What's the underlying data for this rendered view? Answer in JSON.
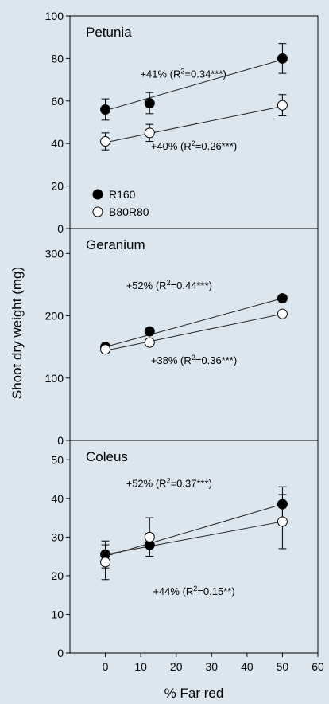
{
  "figure": {
    "ylabel": "Shoot dry weight (mg)",
    "xlabel": "% Far red",
    "xticks": [
      0,
      10,
      20,
      30,
      40,
      50,
      60
    ],
    "xlim": [
      -10,
      60
    ]
  },
  "legend": {
    "items": [
      {
        "label": "R160",
        "marker": "filled"
      },
      {
        "label": "B80R80",
        "marker": "open"
      }
    ]
  },
  "colors": {
    "background": "#dce6ef",
    "filled_marker": "#000000",
    "open_marker_fill": "#ffffff"
  },
  "chart_data": [
    {
      "type": "scatter",
      "title": "Petunia",
      "ylim": [
        0,
        100
      ],
      "yticks": [
        0,
        20,
        40,
        60,
        80,
        100
      ],
      "series": [
        {
          "name": "R160",
          "marker": "filled",
          "x": [
            0,
            12.5,
            50
          ],
          "y": [
            56,
            59,
            80
          ],
          "err": [
            5,
            5,
            7
          ],
          "fit": [
            55.5,
            79.5
          ]
        },
        {
          "name": "B80R80",
          "marker": "open",
          "x": [
            0,
            12.5,
            50
          ],
          "y": [
            41,
            45,
            58
          ],
          "err": [
            4,
            4,
            5
          ],
          "fit": [
            40.5,
            57.5
          ]
        }
      ],
      "annotations": [
        {
          "prefix": "+41% (R",
          "value": "=0.34***)",
          "anchor_x": 22,
          "anchor_y": 71
        },
        {
          "prefix": "+40% (R",
          "value": "=0.26***)",
          "anchor_x": 25,
          "anchor_y": 37
        }
      ]
    },
    {
      "type": "scatter",
      "title": "Geranium",
      "ylim": [
        0,
        340
      ],
      "yticks": [
        0,
        100,
        200,
        300
      ],
      "series": [
        {
          "name": "R160",
          "marker": "filled",
          "x": [
            0,
            12.5,
            50
          ],
          "y": [
            150,
            175,
            228
          ],
          "err": [
            0,
            0,
            0
          ],
          "fit": [
            150,
            228
          ]
        },
        {
          "name": "B80R80",
          "marker": "open",
          "x": [
            0,
            12.5,
            50
          ],
          "y": [
            146,
            157,
            203
          ],
          "err": [
            0,
            0,
            0
          ],
          "fit": [
            144,
            203
          ]
        }
      ],
      "annotations": [
        {
          "prefix": "+52% (R",
          "value": "=0.44***)",
          "anchor_x": 18,
          "anchor_y": 243
        },
        {
          "prefix": "+38% (R",
          "value": "=0.36***)",
          "anchor_x": 25,
          "anchor_y": 123
        }
      ]
    },
    {
      "type": "scatter",
      "title": "Coleus",
      "ylim": [
        0,
        55
      ],
      "yticks": [
        0,
        10,
        20,
        30,
        40,
        50
      ],
      "series": [
        {
          "name": "R160",
          "marker": "filled",
          "x": [
            0,
            12.5,
            50
          ],
          "y": [
            25.5,
            28,
            38.5
          ],
          "err": [
            3.5,
            3,
            4.5
          ],
          "fit": [
            25,
            38.5
          ]
        },
        {
          "name": "B80R80",
          "marker": "open",
          "x": [
            0,
            12.5,
            50
          ],
          "y": [
            23.5,
            30,
            34
          ],
          "err": [
            4.5,
            5,
            7
          ],
          "fit": [
            25.5,
            34
          ]
        }
      ],
      "annotations": [
        {
          "prefix": "+52% (R",
          "value": "=0.37***)",
          "anchor_x": 18,
          "anchor_y": 43
        },
        {
          "prefix": "+44% (R",
          "value": "=0.15**)",
          "anchor_x": 25,
          "anchor_y": 15
        }
      ]
    }
  ]
}
